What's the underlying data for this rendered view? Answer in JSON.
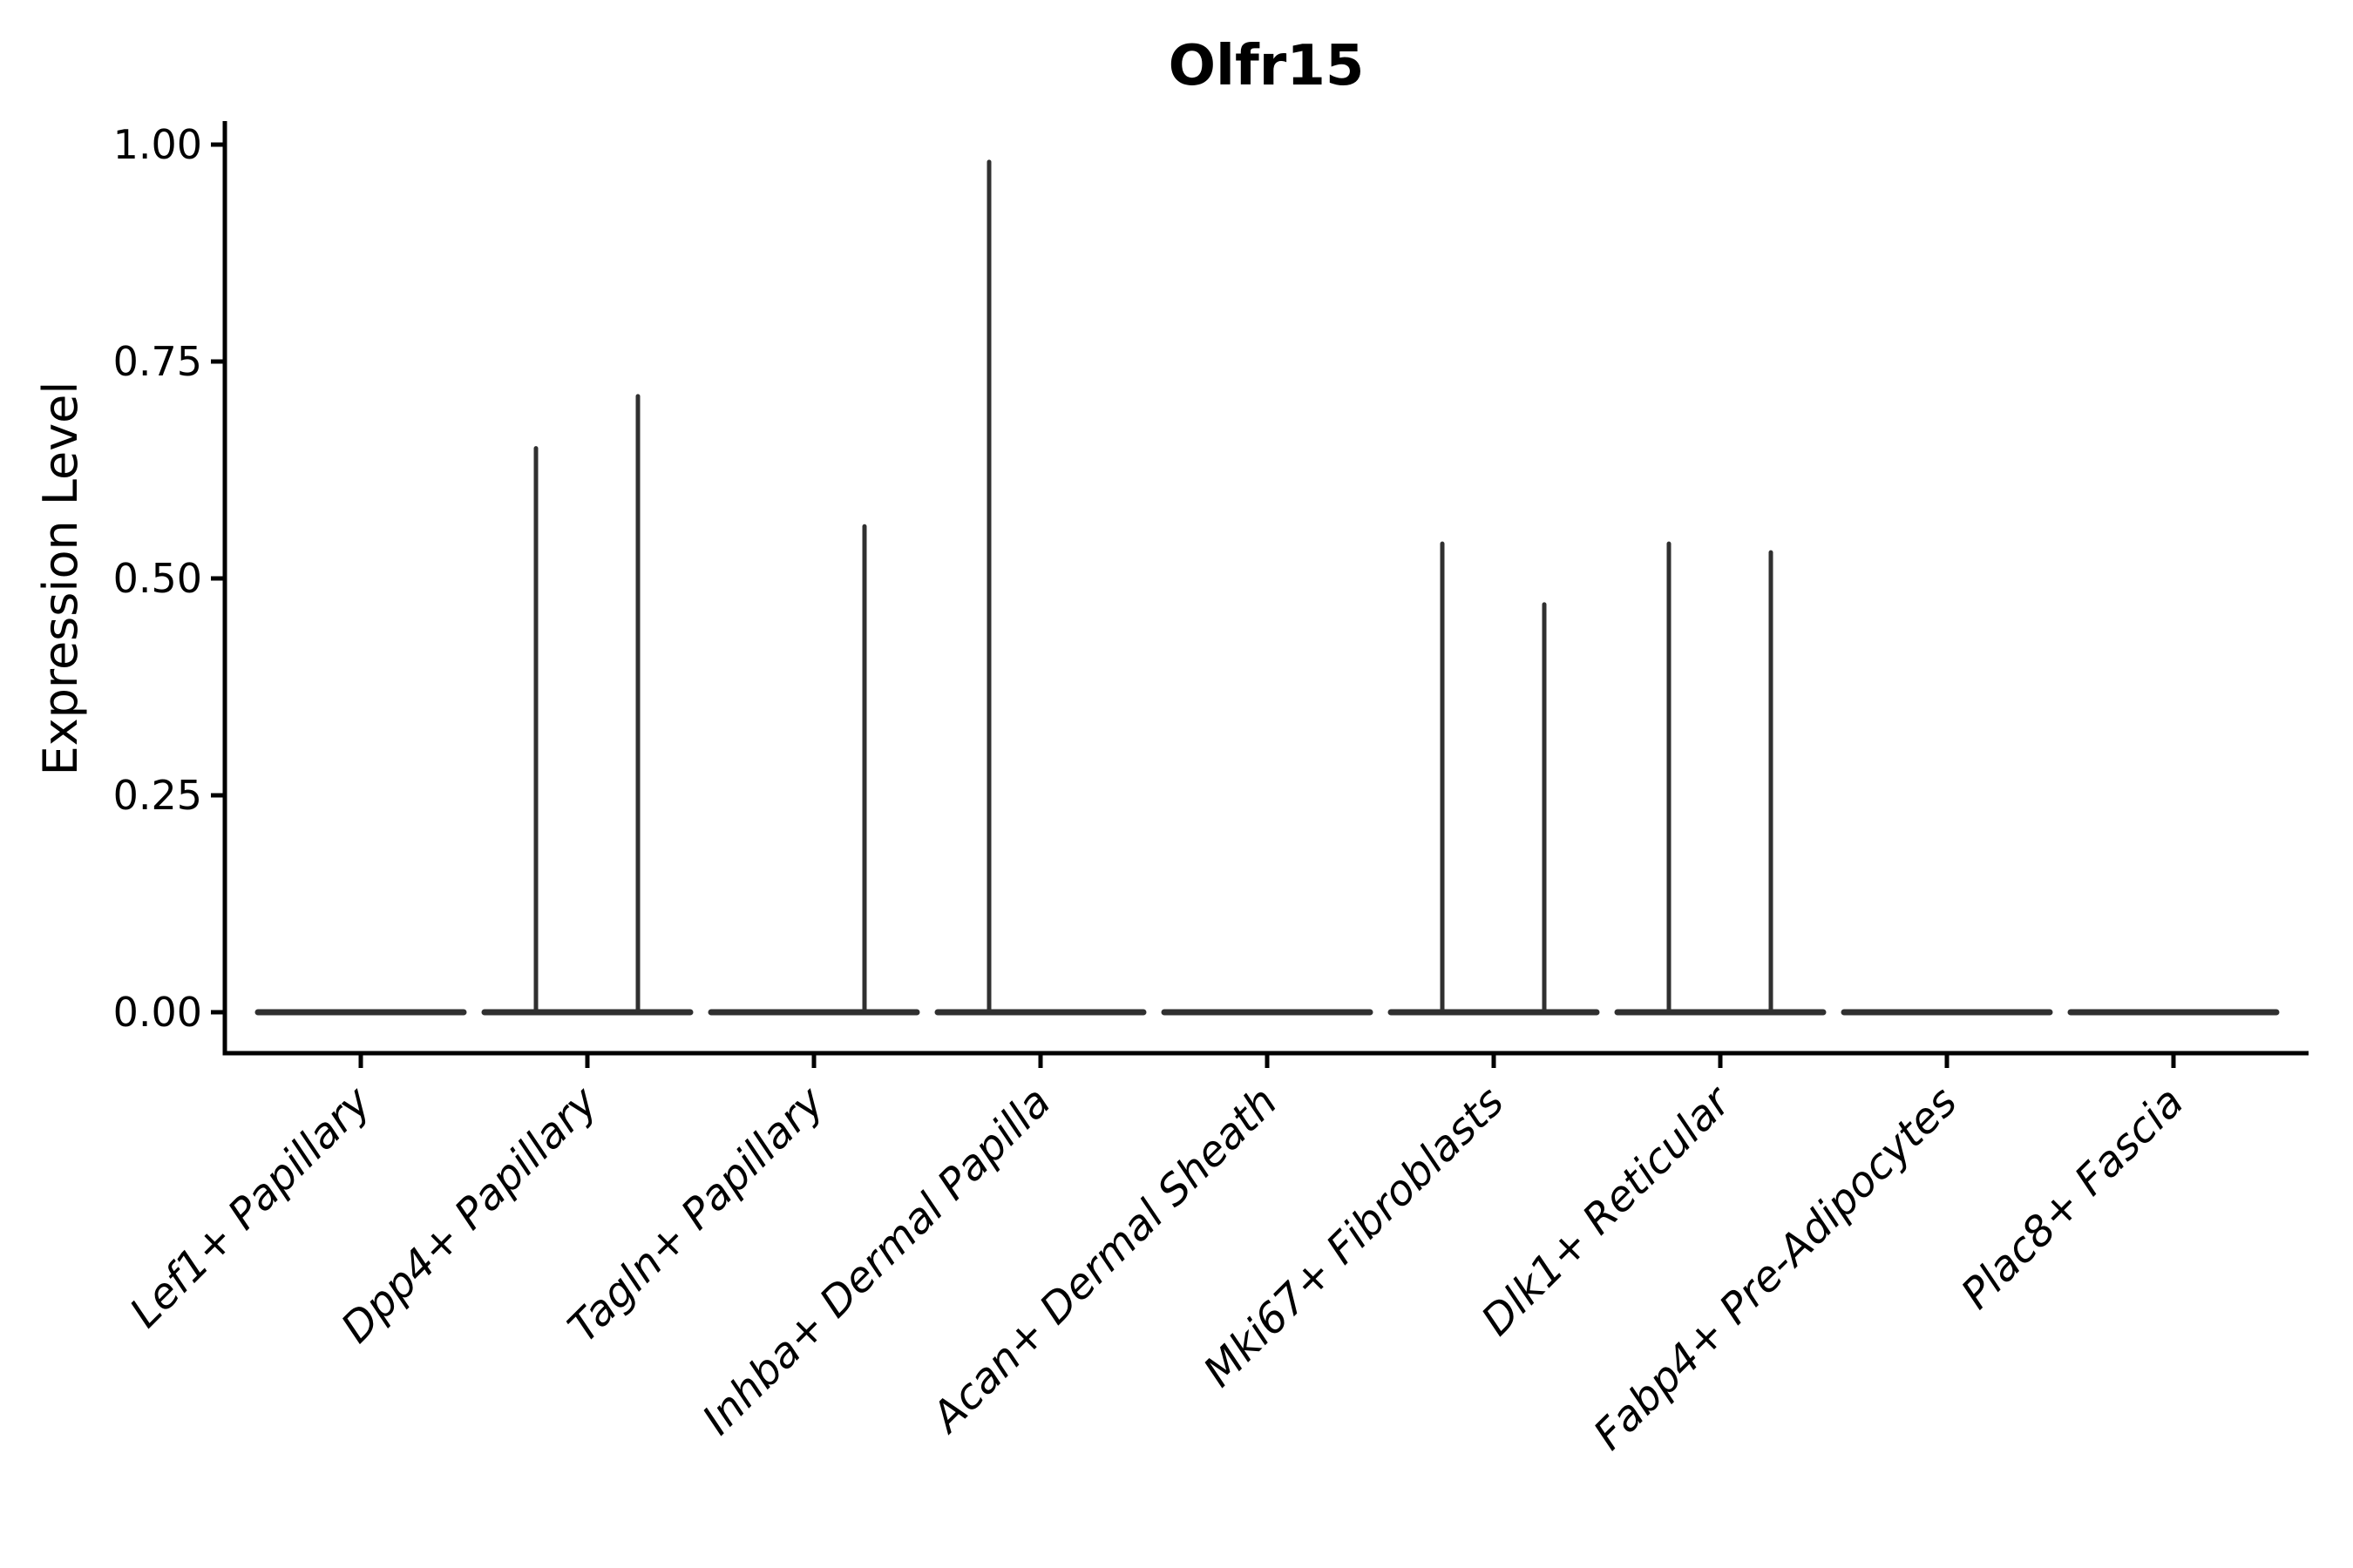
{
  "title": "Olfr15",
  "y_axis": {
    "label": "Expression Level",
    "tick_labels": [
      "0.00",
      "0.25",
      "0.50",
      "0.75",
      "1.00"
    ]
  },
  "style": {
    "background": "#ffffff",
    "axis_color": "#000000",
    "violin_color": "#303030",
    "text_color": "#000000"
  },
  "chart_data": {
    "type": "violin",
    "title": "Olfr15",
    "xlabel": "",
    "ylabel": "Expression Level",
    "ylim": [
      -0.05,
      1.03
    ],
    "yticks": [
      0,
      0.25,
      0.5,
      0.75,
      1.0
    ],
    "ytick_labels": [
      "0.00",
      "0.25",
      "0.50",
      "0.75",
      "1.00"
    ],
    "grid": false,
    "legend": "none",
    "categories": [
      "Lef1+ Papillary",
      "Dpp4+ Papillary",
      "Tagln+ Papillary",
      "Inhba+ Dermal Papilla",
      "Acan+ Dermal Sheath",
      "Mki67+ Fibroblasts",
      "Dlk1+ Reticular",
      "Fabp4+ Pre-Adipocytes",
      "Plac8+ Fascia"
    ],
    "violins": [
      {
        "category": "Lef1+ Papillary",
        "body_value": 0,
        "spikes": []
      },
      {
        "category": "Dpp4+ Papillary",
        "body_value": 0,
        "spikes": [
          {
            "side": "left",
            "value": 0.65
          },
          {
            "side": "right",
            "value": 0.71
          }
        ]
      },
      {
        "category": "Tagln+ Papillary",
        "body_value": 0,
        "spikes": [
          {
            "side": "right",
            "value": 0.56
          }
        ]
      },
      {
        "category": "Inhba+ Dermal Papilla",
        "body_value": 0,
        "spikes": [
          {
            "side": "left",
            "value": 0.98
          }
        ]
      },
      {
        "category": "Acan+ Dermal Sheath",
        "body_value": 0,
        "spikes": []
      },
      {
        "category": "Mki67+ Fibroblasts",
        "body_value": 0,
        "spikes": [
          {
            "side": "left",
            "value": 0.54
          },
          {
            "side": "right",
            "value": 0.47
          }
        ]
      },
      {
        "category": "Dlk1+ Reticular",
        "body_value": 0,
        "spikes": [
          {
            "side": "left",
            "value": 0.54
          },
          {
            "side": "right",
            "value": 0.53
          }
        ]
      },
      {
        "category": "Fabp4+ Pre-Adipocytes",
        "body_value": 0,
        "spikes": []
      },
      {
        "category": "Plac8+ Fascia",
        "body_value": 0,
        "spikes": []
      }
    ]
  }
}
